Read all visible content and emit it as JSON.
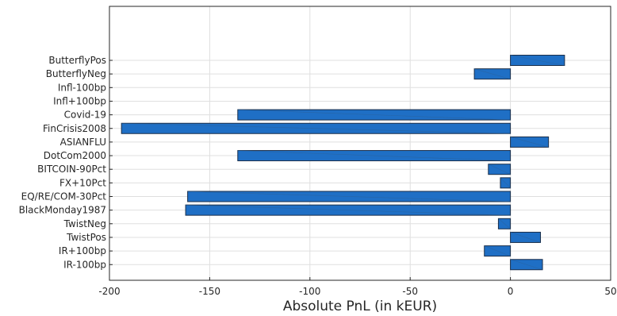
{
  "chart_data": {
    "type": "bar",
    "orientation": "horizontal",
    "title": "",
    "xlabel": "Absolute PnL (in kEUR)",
    "ylabel": "",
    "xlim": [
      -200,
      50
    ],
    "xticks": [
      -200,
      -150,
      -100,
      -50,
      0,
      50
    ],
    "grid": true,
    "bar_color": "#1f6fc5",
    "categories": [
      "ButterflyPos",
      "ButterflyNeg",
      "Infl-100bp",
      "Infl+100bp",
      "Covid-19",
      "FinCrisis2008",
      "ASIANFLU",
      "DotCom2000",
      "BITCOIN-90Pct",
      "FX+10Pct",
      "EQ/RE/COM-30Pct",
      "BlackMonday1987",
      "TwistNeg",
      "TwistPos",
      "IR+100bp",
      "IR-100bp"
    ],
    "values": [
      27,
      -18,
      0,
      0,
      -136,
      -194,
      19,
      -136,
      -11,
      -5,
      -161,
      -162,
      -6,
      15,
      -13,
      16
    ]
  }
}
